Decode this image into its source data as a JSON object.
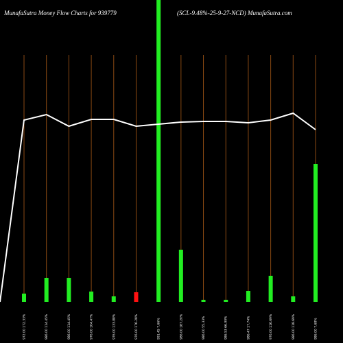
{
  "chart_data": {
    "type": "bar",
    "title": "MunafaSutra  Money Flow  Charts for 939779",
    "subtitle": "(SCL-9.48%-25-9-27-NCD) MunafaSutra.com",
    "categories": [
      "972.00 172.33%",
      "986.00 114.45%",
      "986.00 114.45%",
      "976.00 104.47%",
      "976.00 133.88%",
      "976.00 176.28%",
      "991.45 7.66%",
      "986.00 187.20%",
      "986.00 55.33%",
      "986.53 66.99%",
      "986.47 17.74%",
      "976.00 116.69%",
      "986.00 118.69%",
      "986.00 7.68%"
    ],
    "values": [
      12,
      35,
      35,
      15,
      8,
      14,
      440,
      76,
      3,
      3,
      16,
      38,
      8,
      201
    ],
    "colors": [
      "#22ee22",
      "#22ee22",
      "#22ee22",
      "#22ee22",
      "#22ee22",
      "#ff1111",
      "#22ee22",
      "#22ee22",
      "#22ee22",
      "#22ee22",
      "#22ee22",
      "#22ee22",
      "#22ee22",
      "#22ee22"
    ],
    "line_values": [
      265,
      273,
      256,
      266,
      266,
      256,
      259,
      262,
      263,
      263,
      261,
      265,
      275,
      251
    ],
    "line_color": "#ffffff",
    "ylim": [
      0,
      440
    ]
  }
}
